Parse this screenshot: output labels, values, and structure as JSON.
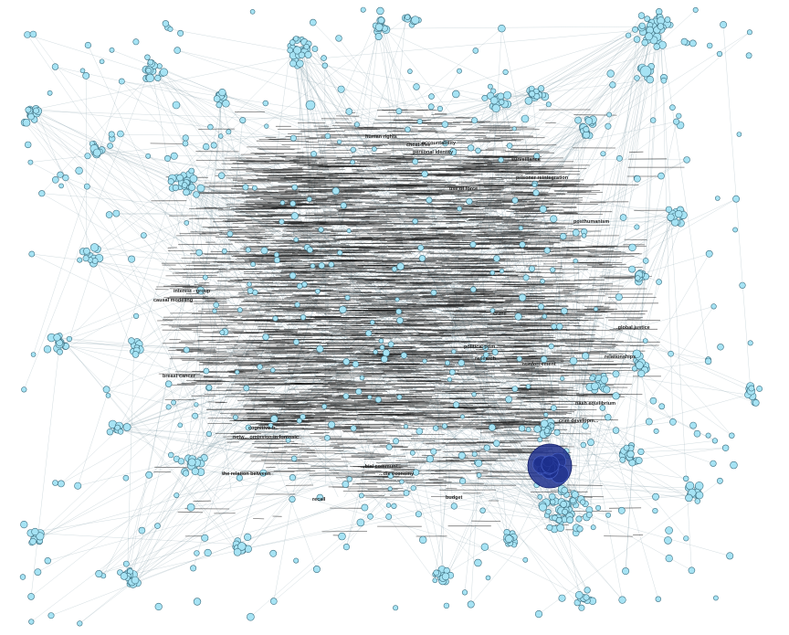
{
  "colors": {
    "node_fill": "#a6e3f4",
    "node_stroke": "#3d6f80",
    "hub_fill": "#1d2f8c",
    "edge": "#7f9aa6",
    "label": "#222222",
    "background": "#ffffff"
  },
  "labels": [
    "surveillance",
    "prisoner reintegration",
    "use of force",
    "posthumanism",
    "interest - group",
    "causal modeling",
    "breast cancer",
    "the relation between",
    "netw... omission in forensic",
    "cognitive-b...",
    "political prim...",
    "reinforcement",
    "crime",
    "nash equilibrium",
    "human rights",
    "cheat-free",
    "personal identity",
    "accountability",
    "crim developm...",
    "research",
    "recall",
    "budget",
    "...bial communi...",
    "...dle economy",
    "relationships",
    "...global justice"
  ]
}
